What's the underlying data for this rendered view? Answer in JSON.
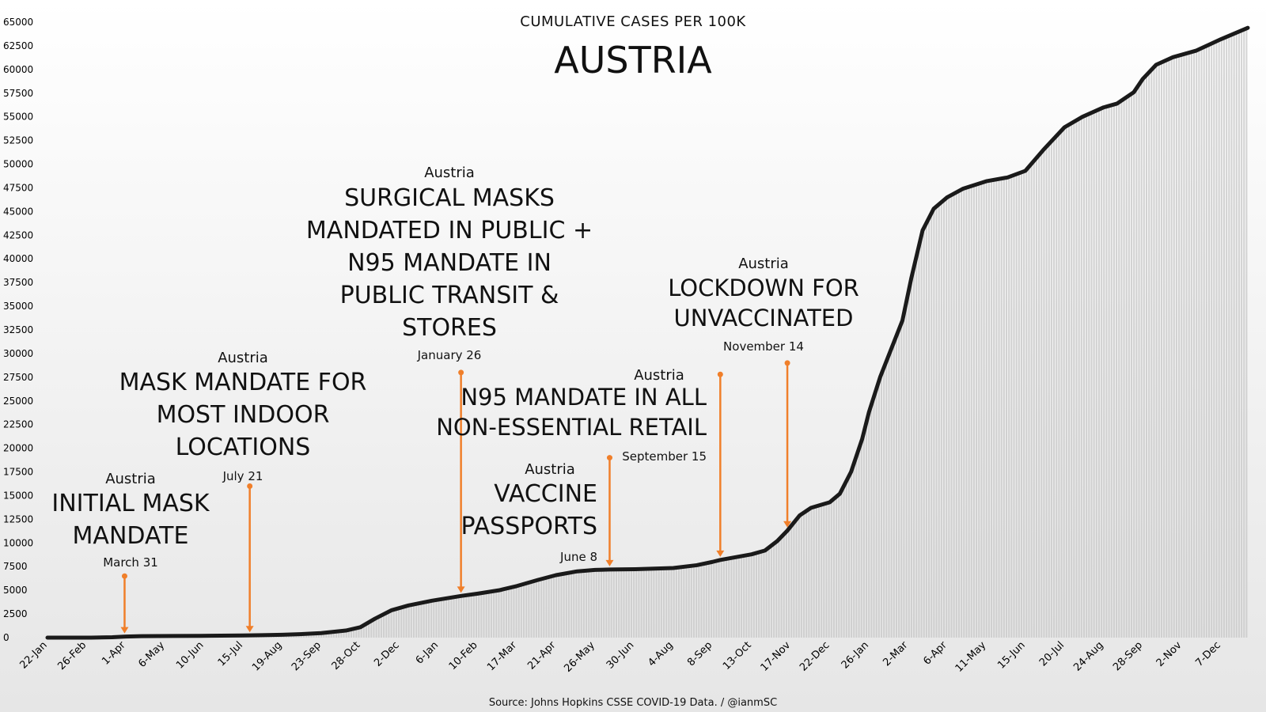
{
  "chart_data": {
    "type": "area",
    "subtitle": "CUMULATIVE CASES PER 100K",
    "title": "AUSTRIA",
    "source": "Source: Johns Hopkins CSSE COVID-19 Data. / @ianmSC",
    "ylim": [
      0,
      65000
    ],
    "y_ticks": [
      0,
      2500,
      5000,
      7500,
      10000,
      12500,
      15000,
      17500,
      20000,
      22500,
      25000,
      27500,
      30000,
      32500,
      35000,
      37500,
      40000,
      42500,
      45000,
      47500,
      50000,
      52500,
      55000,
      57500,
      60000,
      62500,
      65000
    ],
    "x_range": [
      "2020-01-22",
      "2022-12-31"
    ],
    "x_ticks": [
      {
        "label": "22-Jan",
        "date": "2020-01-22"
      },
      {
        "label": "26-Feb",
        "date": "2020-02-26"
      },
      {
        "label": "1-Apr",
        "date": "2020-04-01"
      },
      {
        "label": "6-May",
        "date": "2020-05-06"
      },
      {
        "label": "10-Jun",
        "date": "2020-06-10"
      },
      {
        "label": "15-Jul",
        "date": "2020-07-15"
      },
      {
        "label": "19-Aug",
        "date": "2020-08-19"
      },
      {
        "label": "23-Sep",
        "date": "2020-09-23"
      },
      {
        "label": "28-Oct",
        "date": "2020-10-28"
      },
      {
        "label": "2-Dec",
        "date": "2020-12-02"
      },
      {
        "label": "6-Jan",
        "date": "2021-01-06"
      },
      {
        "label": "10-Feb",
        "date": "2021-02-10"
      },
      {
        "label": "17-Mar",
        "date": "2021-03-17"
      },
      {
        "label": "21-Apr",
        "date": "2021-04-21"
      },
      {
        "label": "26-May",
        "date": "2021-05-26"
      },
      {
        "label": "30-Jun",
        "date": "2021-06-30"
      },
      {
        "label": "4-Aug",
        "date": "2021-08-04"
      },
      {
        "label": "8-Sep",
        "date": "2021-09-08"
      },
      {
        "label": "13-Oct",
        "date": "2021-10-13"
      },
      {
        "label": "17-Nov",
        "date": "2021-11-17"
      },
      {
        "label": "22-Dec",
        "date": "2021-12-22"
      },
      {
        "label": "26-Jan",
        "date": "2022-01-26"
      },
      {
        "label": "2-Mar",
        "date": "2022-03-02"
      },
      {
        "label": "6-Apr",
        "date": "2022-04-06"
      },
      {
        "label": "11-May",
        "date": "2022-05-11"
      },
      {
        "label": "15-Jun",
        "date": "2022-06-15"
      },
      {
        "label": "20-Jul",
        "date": "2022-07-20"
      },
      {
        "label": "24-Aug",
        "date": "2022-08-24"
      },
      {
        "label": "28-Sep",
        "date": "2022-09-28"
      },
      {
        "label": "2-Nov",
        "date": "2022-11-02"
      },
      {
        "label": "7-Dec",
        "date": "2022-12-07"
      }
    ],
    "series": [
      {
        "points": [
          [
            "2020-01-22",
            0
          ],
          [
            "2020-03-01",
            0
          ],
          [
            "2020-03-20",
            40
          ],
          [
            "2020-04-01",
            110
          ],
          [
            "2020-04-15",
            160
          ],
          [
            "2020-05-15",
            180
          ],
          [
            "2020-06-15",
            195
          ],
          [
            "2020-07-15",
            230
          ],
          [
            "2020-08-01",
            260
          ],
          [
            "2020-08-19",
            300
          ],
          [
            "2020-09-01",
            350
          ],
          [
            "2020-09-23",
            480
          ],
          [
            "2020-10-15",
            750
          ],
          [
            "2020-10-28",
            1100
          ],
          [
            "2020-11-10",
            2000
          ],
          [
            "2020-11-25",
            2900
          ],
          [
            "2020-12-10",
            3400
          ],
          [
            "2020-12-31",
            3900
          ],
          [
            "2021-01-26",
            4400
          ],
          [
            "2021-02-10",
            4650
          ],
          [
            "2021-03-01",
            5000
          ],
          [
            "2021-03-17",
            5450
          ],
          [
            "2021-04-05",
            6100
          ],
          [
            "2021-04-21",
            6600
          ],
          [
            "2021-05-10",
            7000
          ],
          [
            "2021-05-26",
            7150
          ],
          [
            "2021-06-08",
            7200
          ],
          [
            "2021-07-01",
            7230
          ],
          [
            "2021-08-04",
            7350
          ],
          [
            "2021-08-25",
            7650
          ],
          [
            "2021-09-08",
            8000
          ],
          [
            "2021-09-15",
            8200
          ],
          [
            "2021-10-13",
            8800
          ],
          [
            "2021-10-25",
            9200
          ],
          [
            "2021-11-05",
            10200
          ],
          [
            "2021-11-14",
            11300
          ],
          [
            "2021-11-25",
            12900
          ],
          [
            "2021-12-05",
            13700
          ],
          [
            "2021-12-22",
            14300
          ],
          [
            "2021-12-31",
            15200
          ],
          [
            "2022-01-10",
            17500
          ],
          [
            "2022-01-20",
            21000
          ],
          [
            "2022-01-26",
            23800
          ],
          [
            "2022-02-05",
            27500
          ],
          [
            "2022-02-15",
            30500
          ],
          [
            "2022-02-25",
            33500
          ],
          [
            "2022-03-05",
            38000
          ],
          [
            "2022-03-15",
            43000
          ],
          [
            "2022-03-25",
            45300
          ],
          [
            "2022-04-06",
            46500
          ],
          [
            "2022-04-20",
            47400
          ],
          [
            "2022-05-11",
            48200
          ],
          [
            "2022-05-30",
            48600
          ],
          [
            "2022-06-15",
            49300
          ],
          [
            "2022-07-01",
            51500
          ],
          [
            "2022-07-20",
            53900
          ],
          [
            "2022-08-05",
            55000
          ],
          [
            "2022-08-24",
            56000
          ],
          [
            "2022-09-05",
            56400
          ],
          [
            "2022-09-20",
            57600
          ],
          [
            "2022-09-28",
            59000
          ],
          [
            "2022-10-10",
            60500
          ],
          [
            "2022-10-25",
            61300
          ],
          [
            "2022-11-15",
            62000
          ],
          [
            "2022-12-07",
            63200
          ],
          [
            "2022-12-31",
            64400
          ]
        ]
      }
    ],
    "annotations": [
      {
        "country": "Austria",
        "lines": [
          "INITIAL MASK",
          "MANDATE"
        ],
        "date_label": "March 31",
        "date": "2020-03-31",
        "arrow_top": 6500,
        "arrow_bottom": 110
      },
      {
        "country": "Austria",
        "lines": [
          "MASK MANDATE FOR",
          "MOST INDOOR",
          "LOCATIONS"
        ],
        "date_label": "July 21",
        "date": "2020-07-21",
        "arrow_top": 16000,
        "arrow_bottom": 230
      },
      {
        "country": "Austria",
        "lines": [
          "SURGICAL MASKS",
          "MANDATED IN PUBLIC +",
          "N95 MANDATE IN",
          "PUBLIC TRANSIT &",
          "STORES"
        ],
        "date_label": "January 26",
        "date": "2021-01-26",
        "arrow_top": 28000,
        "arrow_bottom": 4400
      },
      {
        "country": "Austria",
        "lines": [
          "VACCINE",
          "PASSPORTS"
        ],
        "date_label": "June 8",
        "date": "2021-06-08",
        "arrow_top": 19000,
        "arrow_bottom": 7200
      },
      {
        "country": "Austria",
        "lines": [
          "N95 MANDATE IN ALL",
          "NON-ESSENTIAL RETAIL"
        ],
        "date_label": "September 15",
        "date": "2021-09-15",
        "arrow_top": 27800,
        "arrow_bottom": 8200
      },
      {
        "country": "Austria",
        "lines": [
          "LOCKDOWN FOR",
          "UNVACCINATED"
        ],
        "date_label": "November 14",
        "date": "2021-11-14",
        "arrow_top": 29000,
        "arrow_bottom": 11300
      }
    ],
    "colors": {
      "line": "#1a1a1a",
      "bars": "#c6c6c6",
      "arrow": "#f07f2a",
      "background_top": "#ffffff",
      "background_bottom": "#e8e8e8"
    },
    "grid": false,
    "legend": "none"
  }
}
